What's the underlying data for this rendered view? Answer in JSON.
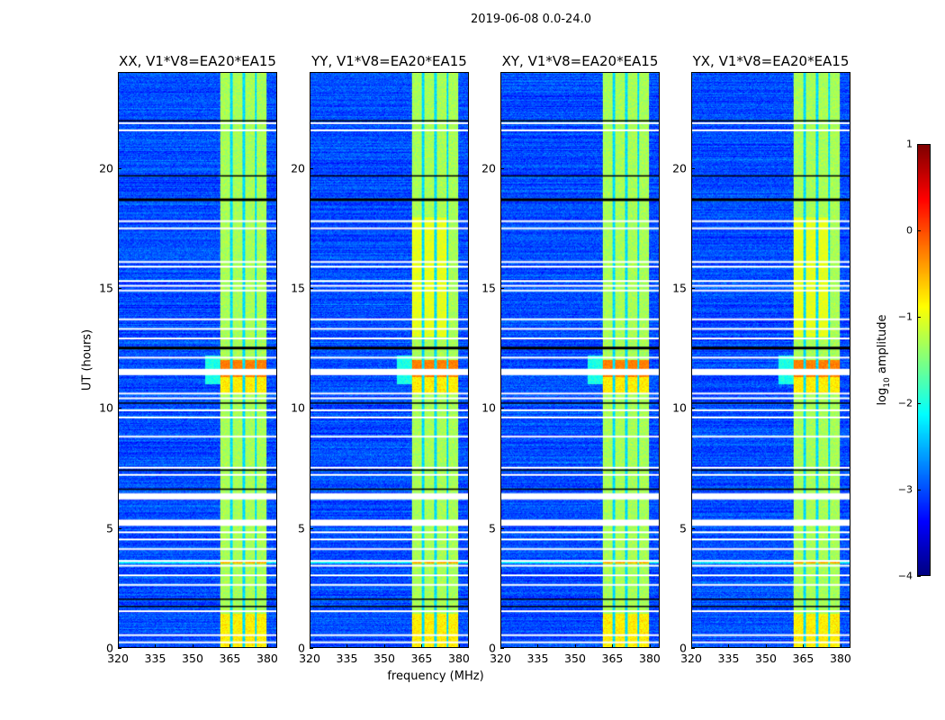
{
  "chart_data": {
    "type": "heatmap",
    "title": "2019-06-08 0.0-24.0",
    "xlabel": "frequency (MHz)",
    "ylabel": "UT (hours)",
    "xlim": [
      320,
      384
    ],
    "ylim": [
      0,
      24
    ],
    "xticks": [
      320,
      335,
      350,
      365,
      380
    ],
    "yticks": [
      0,
      5,
      10,
      15,
      20
    ],
    "panels": [
      {
        "title": "XX, V1*V8=EA20*EA15"
      },
      {
        "title": "YY, V1*V8=EA20*EA15"
      },
      {
        "title": "XY, V1*V8=EA20*EA15"
      },
      {
        "title": "YX, V1*V8=EA20*EA15"
      }
    ],
    "colorbar": {
      "label_prefix": "log",
      "label_sub": "10",
      "label_suffix": " amplitude",
      "range": [
        -4,
        1
      ],
      "ticks": [
        1,
        0,
        -1,
        -2,
        -3,
        -4
      ],
      "colormap": "jet"
    },
    "background_log_amplitude": -3.0,
    "band": {
      "fmin": 361,
      "fmax": 380,
      "log_amplitude": -1.3,
      "channel_gaps": [
        365.5,
        370.5,
        375.5
      ]
    },
    "rfi_bright_hours": [
      11.3,
      12.0
    ],
    "flagged_hours_white": [
      21.9,
      21.6,
      17.8,
      17.5,
      16.1,
      15.9,
      15.3,
      15.1,
      14.9,
      13.7,
      13.3,
      12.9,
      12.1,
      11.5,
      10.6,
      10.4,
      9.9,
      9.6,
      8.8,
      7.5,
      7.2,
      6.3,
      5.2,
      4.8,
      4.5,
      4.1,
      3.6,
      3.4,
      3.0,
      2.6,
      1.5,
      0.5,
      0.2
    ],
    "flagged_hours_black": [
      22.0,
      19.7,
      18.7,
      12.5,
      10.2,
      7.4,
      6.6,
      2.0,
      1.7
    ]
  }
}
